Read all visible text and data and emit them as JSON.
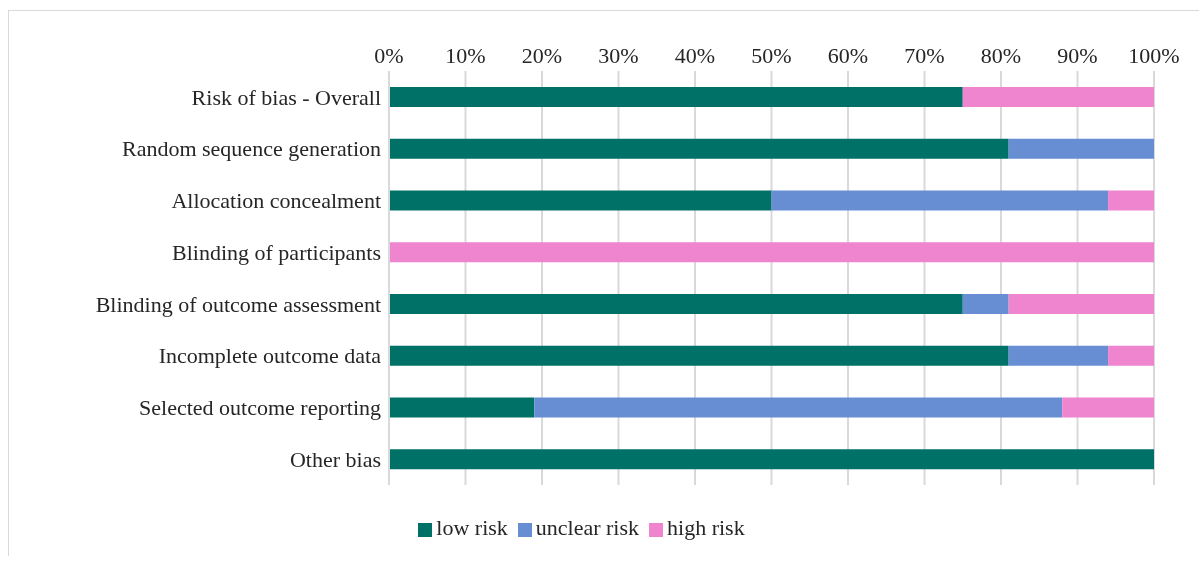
{
  "chart_data": {
    "type": "bar",
    "orientation": "horizontal",
    "stacked": true,
    "categories": [
      "Risk of bias - Overall",
      "Random sequence generation",
      "Allocation concealment",
      "Blinding of participants",
      "Blinding of outcome assessment",
      "Incomplete outcome data",
      "Selected outcome reporting",
      "Other bias"
    ],
    "series": [
      {
        "name": "low risk",
        "color": "#007167",
        "values": [
          75,
          81,
          50,
          0,
          75,
          81,
          19,
          100
        ]
      },
      {
        "name": "unclear risk",
        "color": "#678dd3",
        "values": [
          0,
          19,
          44,
          0,
          6,
          13,
          69,
          0
        ]
      },
      {
        "name": "high risk",
        "color": "#ef84cf",
        "values": [
          25,
          0,
          6,
          100,
          19,
          6,
          12,
          0
        ]
      }
    ],
    "xlim": [
      0,
      100
    ],
    "xticks": [
      {
        "value": 0,
        "label": "0%"
      },
      {
        "value": 10,
        "label": "10%"
      },
      {
        "value": 20,
        "label": "20%"
      },
      {
        "value": 30,
        "label": "30%"
      },
      {
        "value": 40,
        "label": "40%"
      },
      {
        "value": 50,
        "label": "50%"
      },
      {
        "value": 60,
        "label": "60%"
      },
      {
        "value": 70,
        "label": "70%"
      },
      {
        "value": 80,
        "label": "80%"
      },
      {
        "value": 90,
        "label": "90%"
      },
      {
        "value": 100,
        "label": "100%"
      }
    ],
    "grid": "x",
    "legend": "bottom"
  }
}
